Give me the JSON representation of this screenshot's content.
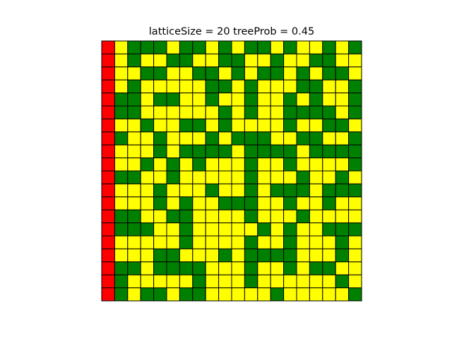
{
  "chart_data": {
    "type": "heatmap",
    "title": "latticeSize = 20 treeProb = 0.45",
    "xlabel": "",
    "ylabel": "",
    "grid": true,
    "axes_visible": false,
    "lattice_size": 20,
    "tree_prob": 0.45,
    "legend": {
      "0": "empty (yellow)",
      "1": "tree (green)",
      "2": "burning (red)"
    },
    "colors": {
      "empty": "#ffff00",
      "tree": "#008000",
      "burning": "#ff0000",
      "gridline": "#000000"
    },
    "grid_cells": [
      [
        2,
        0,
        1,
        1,
        1,
        0,
        1,
        1,
        0,
        1,
        0,
        1,
        1,
        0,
        1,
        0,
        0,
        1,
        0,
        1
      ],
      [
        2,
        0,
        1,
        0,
        0,
        1,
        1,
        0,
        0,
        1,
        1,
        0,
        0,
        1,
        0,
        0,
        1,
        1,
        0,
        0
      ],
      [
        2,
        0,
        0,
        1,
        1,
        0,
        0,
        1,
        1,
        0,
        1,
        0,
        1,
        1,
        0,
        1,
        0,
        1,
        1,
        0
      ],
      [
        2,
        0,
        1,
        0,
        0,
        0,
        0,
        0,
        1,
        1,
        0,
        1,
        0,
        0,
        0,
        1,
        1,
        0,
        0,
        1
      ],
      [
        2,
        1,
        1,
        0,
        1,
        1,
        0,
        0,
        1,
        0,
        0,
        1,
        0,
        0,
        1,
        0,
        1,
        0,
        0,
        1
      ],
      [
        2,
        1,
        1,
        0,
        0,
        0,
        0,
        0,
        0,
        1,
        0,
        1,
        0,
        0,
        1,
        1,
        1,
        1,
        0,
        1
      ],
      [
        2,
        0,
        0,
        1,
        0,
        0,
        1,
        1,
        0,
        1,
        0,
        0,
        0,
        0,
        1,
        0,
        0,
        1,
        1,
        0
      ],
      [
        2,
        1,
        0,
        0,
        1,
        0,
        0,
        0,
        1,
        0,
        1,
        1,
        1,
        0,
        0,
        1,
        1,
        0,
        0,
        1
      ],
      [
        2,
        0,
        0,
        0,
        1,
        0,
        1,
        1,
        1,
        1,
        0,
        1,
        1,
        1,
        1,
        0,
        1,
        1,
        1,
        1
      ],
      [
        2,
        0,
        0,
        1,
        0,
        1,
        0,
        1,
        0,
        0,
        0,
        1,
        0,
        0,
        1,
        0,
        0,
        0,
        0,
        1
      ],
      [
        2,
        1,
        1,
        0,
        0,
        1,
        0,
        0,
        0,
        0,
        0,
        1,
        0,
        0,
        0,
        1,
        0,
        0,
        1,
        0
      ],
      [
        2,
        0,
        0,
        0,
        1,
        0,
        0,
        0,
        1,
        0,
        0,
        1,
        0,
        1,
        1,
        1,
        0,
        1,
        1,
        1
      ],
      [
        2,
        0,
        0,
        0,
        1,
        0,
        1,
        0,
        0,
        1,
        1,
        1,
        0,
        0,
        1,
        0,
        0,
        1,
        0,
        0
      ],
      [
        2,
        1,
        1,
        0,
        0,
        1,
        1,
        0,
        0,
        0,
        0,
        1,
        0,
        0,
        0,
        1,
        0,
        0,
        0,
        0
      ],
      [
        2,
        1,
        1,
        1,
        0,
        0,
        1,
        0,
        0,
        0,
        0,
        0,
        1,
        0,
        1,
        0,
        0,
        1,
        1,
        1
      ],
      [
        2,
        0,
        0,
        0,
        0,
        0,
        1,
        0,
        0,
        0,
        0,
        1,
        0,
        0,
        1,
        0,
        0,
        0,
        1,
        0
      ],
      [
        2,
        0,
        0,
        0,
        1,
        1,
        0,
        0,
        0,
        1,
        0,
        1,
        1,
        1,
        1,
        0,
        0,
        0,
        1,
        0
      ],
      [
        2,
        1,
        1,
        0,
        1,
        1,
        1,
        1,
        0,
        0,
        0,
        1,
        0,
        0,
        1,
        0,
        1,
        1,
        0,
        0
      ],
      [
        2,
        1,
        0,
        0,
        0,
        0,
        0,
        1,
        0,
        0,
        0,
        1,
        0,
        0,
        0,
        0,
        0,
        0,
        1,
        0
      ],
      [
        2,
        1,
        0,
        1,
        1,
        0,
        1,
        1,
        0,
        0,
        0,
        0,
        0,
        1,
        0,
        0,
        0,
        0,
        0,
        1
      ]
    ]
  }
}
